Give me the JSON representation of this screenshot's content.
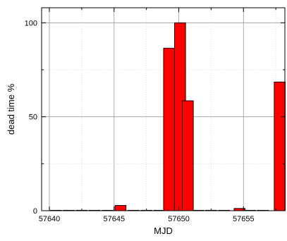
{
  "chart_data": {
    "type": "bar",
    "title": "",
    "xlabel": "MJD",
    "ylabel": "dead time %",
    "xlim": [
      57639.4,
      57658.2
    ],
    "ylim": [
      0,
      108
    ],
    "x_ticks": [
      57640,
      57645,
      57650,
      57655
    ],
    "x_minor_ticks": [
      57642.5,
      57647.5,
      57652.5,
      57657.5
    ],
    "y_ticks": [
      0,
      50,
      100
    ],
    "y_minor_ticks": [
      25,
      75
    ],
    "grid": true,
    "legend": "none",
    "bar_color": "#ff0000",
    "bar_edge_color": "#000000",
    "bar_width": 0.85,
    "bars": [
      {
        "x": 57640.5,
        "value": 0
      },
      {
        "x": 57641.5,
        "value": 0
      },
      {
        "x": 57642.5,
        "value": 0
      },
      {
        "x": 57643.5,
        "value": 0
      },
      {
        "x": 57644.5,
        "value": 0
      },
      {
        "x": 57645.5,
        "value": 2.8
      },
      {
        "x": 57646.5,
        "value": 0
      },
      {
        "x": 57647.5,
        "value": 0
      },
      {
        "x": 57648.5,
        "value": 0
      },
      {
        "x": 57649.25,
        "value": 86.5
      },
      {
        "x": 57650.1,
        "value": 100
      },
      {
        "x": 57650.7,
        "value": 58.5
      },
      {
        "x": 57651.5,
        "value": 0
      },
      {
        "x": 57652.5,
        "value": 0
      },
      {
        "x": 57653.5,
        "value": 0
      },
      {
        "x": 57654.7,
        "value": 1.2
      },
      {
        "x": 57655.5,
        "value": 0
      },
      {
        "x": 57656.5,
        "value": 0
      },
      {
        "x": 57657.8,
        "value": 68.5
      }
    ]
  }
}
